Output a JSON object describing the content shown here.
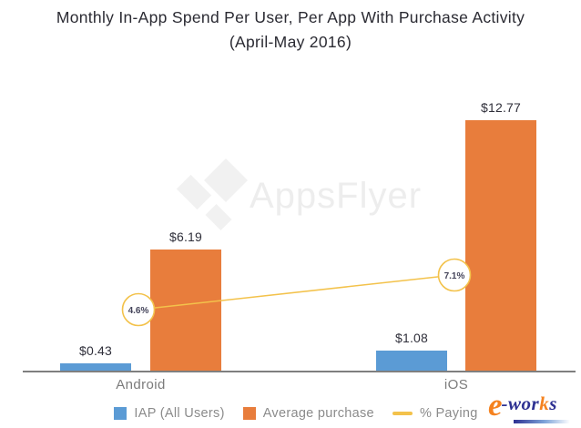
{
  "title": {
    "line1": "Monthly In-App Spend Per User, Per App With Purchase Activity",
    "line2": "(April-May 2016)"
  },
  "watermark": {
    "brand": "AppsFlyer"
  },
  "chart_data": {
    "type": "bar",
    "title": "Monthly In-App Spend Per User, Per App With Purchase Activity (April-May 2016)",
    "categories": [
      "Android",
      "iOS"
    ],
    "series": [
      {
        "name": "IAP (All Users)",
        "type": "bar",
        "values": [
          0.43,
          1.08
        ],
        "labels": [
          "$0.43",
          "$1.08"
        ],
        "color": "#5b9bd5"
      },
      {
        "name": "Average purchase",
        "type": "bar",
        "values": [
          6.19,
          12.77
        ],
        "labels": [
          "$6.19",
          "$12.77"
        ],
        "color": "#e87d3c"
      },
      {
        "name": "% Paying",
        "type": "line",
        "values": [
          4.6,
          7.1
        ],
        "labels": [
          "4.6%",
          "7.1%"
        ],
        "color": "#f3c24b"
      }
    ],
    "xlabel": "",
    "ylabel": "",
    "ylim": [
      0,
      14
    ],
    "grid": false,
    "legend_position": "bottom",
    "axis_color": "#7f7f7f"
  },
  "legend": {
    "items": [
      {
        "label": "IAP (All Users)",
        "swatch": "square",
        "color": "#5b9bd5"
      },
      {
        "label": "Average purchase",
        "swatch": "square",
        "color": "#e87d3c"
      },
      {
        "label": "% Paying",
        "swatch": "line",
        "color": "#f3c24b"
      }
    ]
  },
  "branding": {
    "eworks": {
      "parts": [
        "e",
        "-wor",
        "k",
        "s"
      ],
      "navy": "#2e3192",
      "orange": "#f5821f"
    }
  }
}
